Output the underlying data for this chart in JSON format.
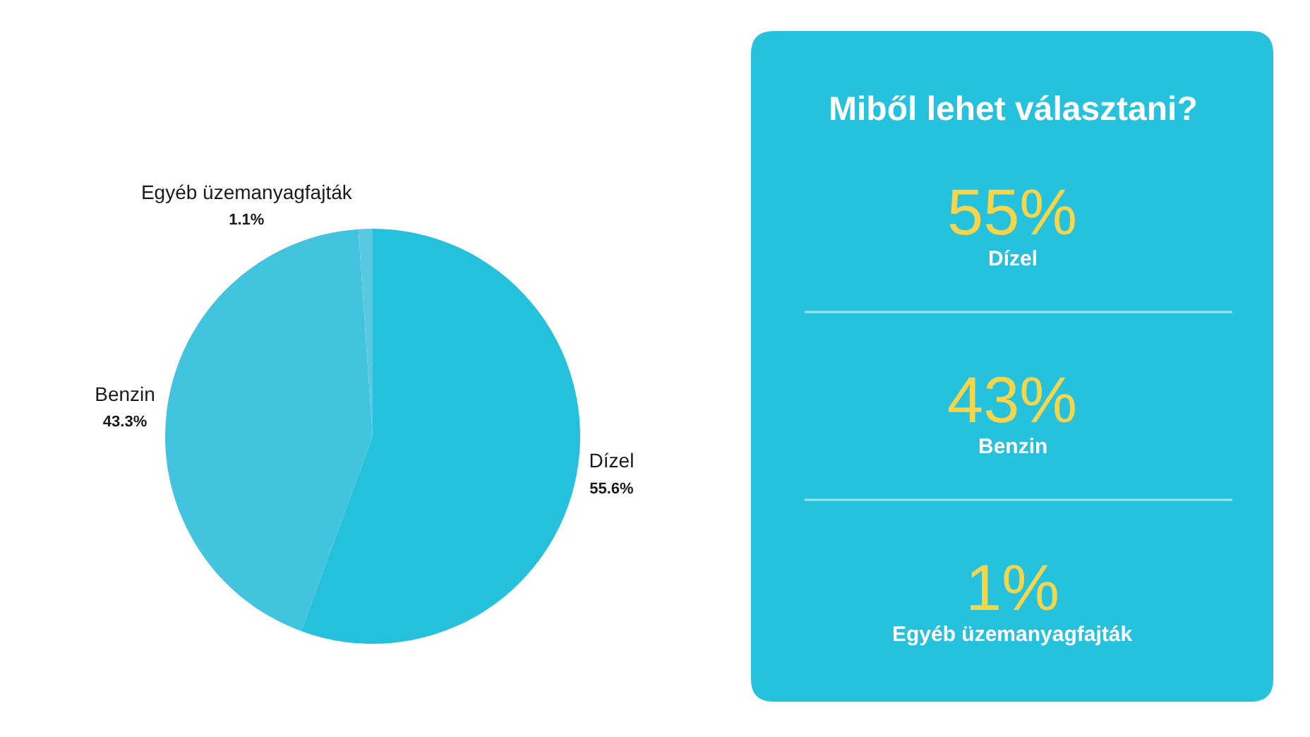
{
  "chart_data": [
    {
      "type": "pie",
      "categories": [
        "Dízel",
        "Benzin",
        "Egyéb üzemanyagfajták"
      ],
      "values": [
        55.6,
        43.3,
        1.1
      ],
      "value_labels": [
        "55.6%",
        "43.3%",
        "1.1%"
      ],
      "colors": [
        "#24c0dc",
        "#42c3de",
        "#58c9e1"
      ]
    },
    {
      "type": "other",
      "title": "Miből lehet választani?",
      "annotations": [
        "55%",
        "Dízel",
        "43%",
        "Benzin",
        "1%",
        "Egyéb üzemanyagfajták"
      ]
    }
  ]
}
